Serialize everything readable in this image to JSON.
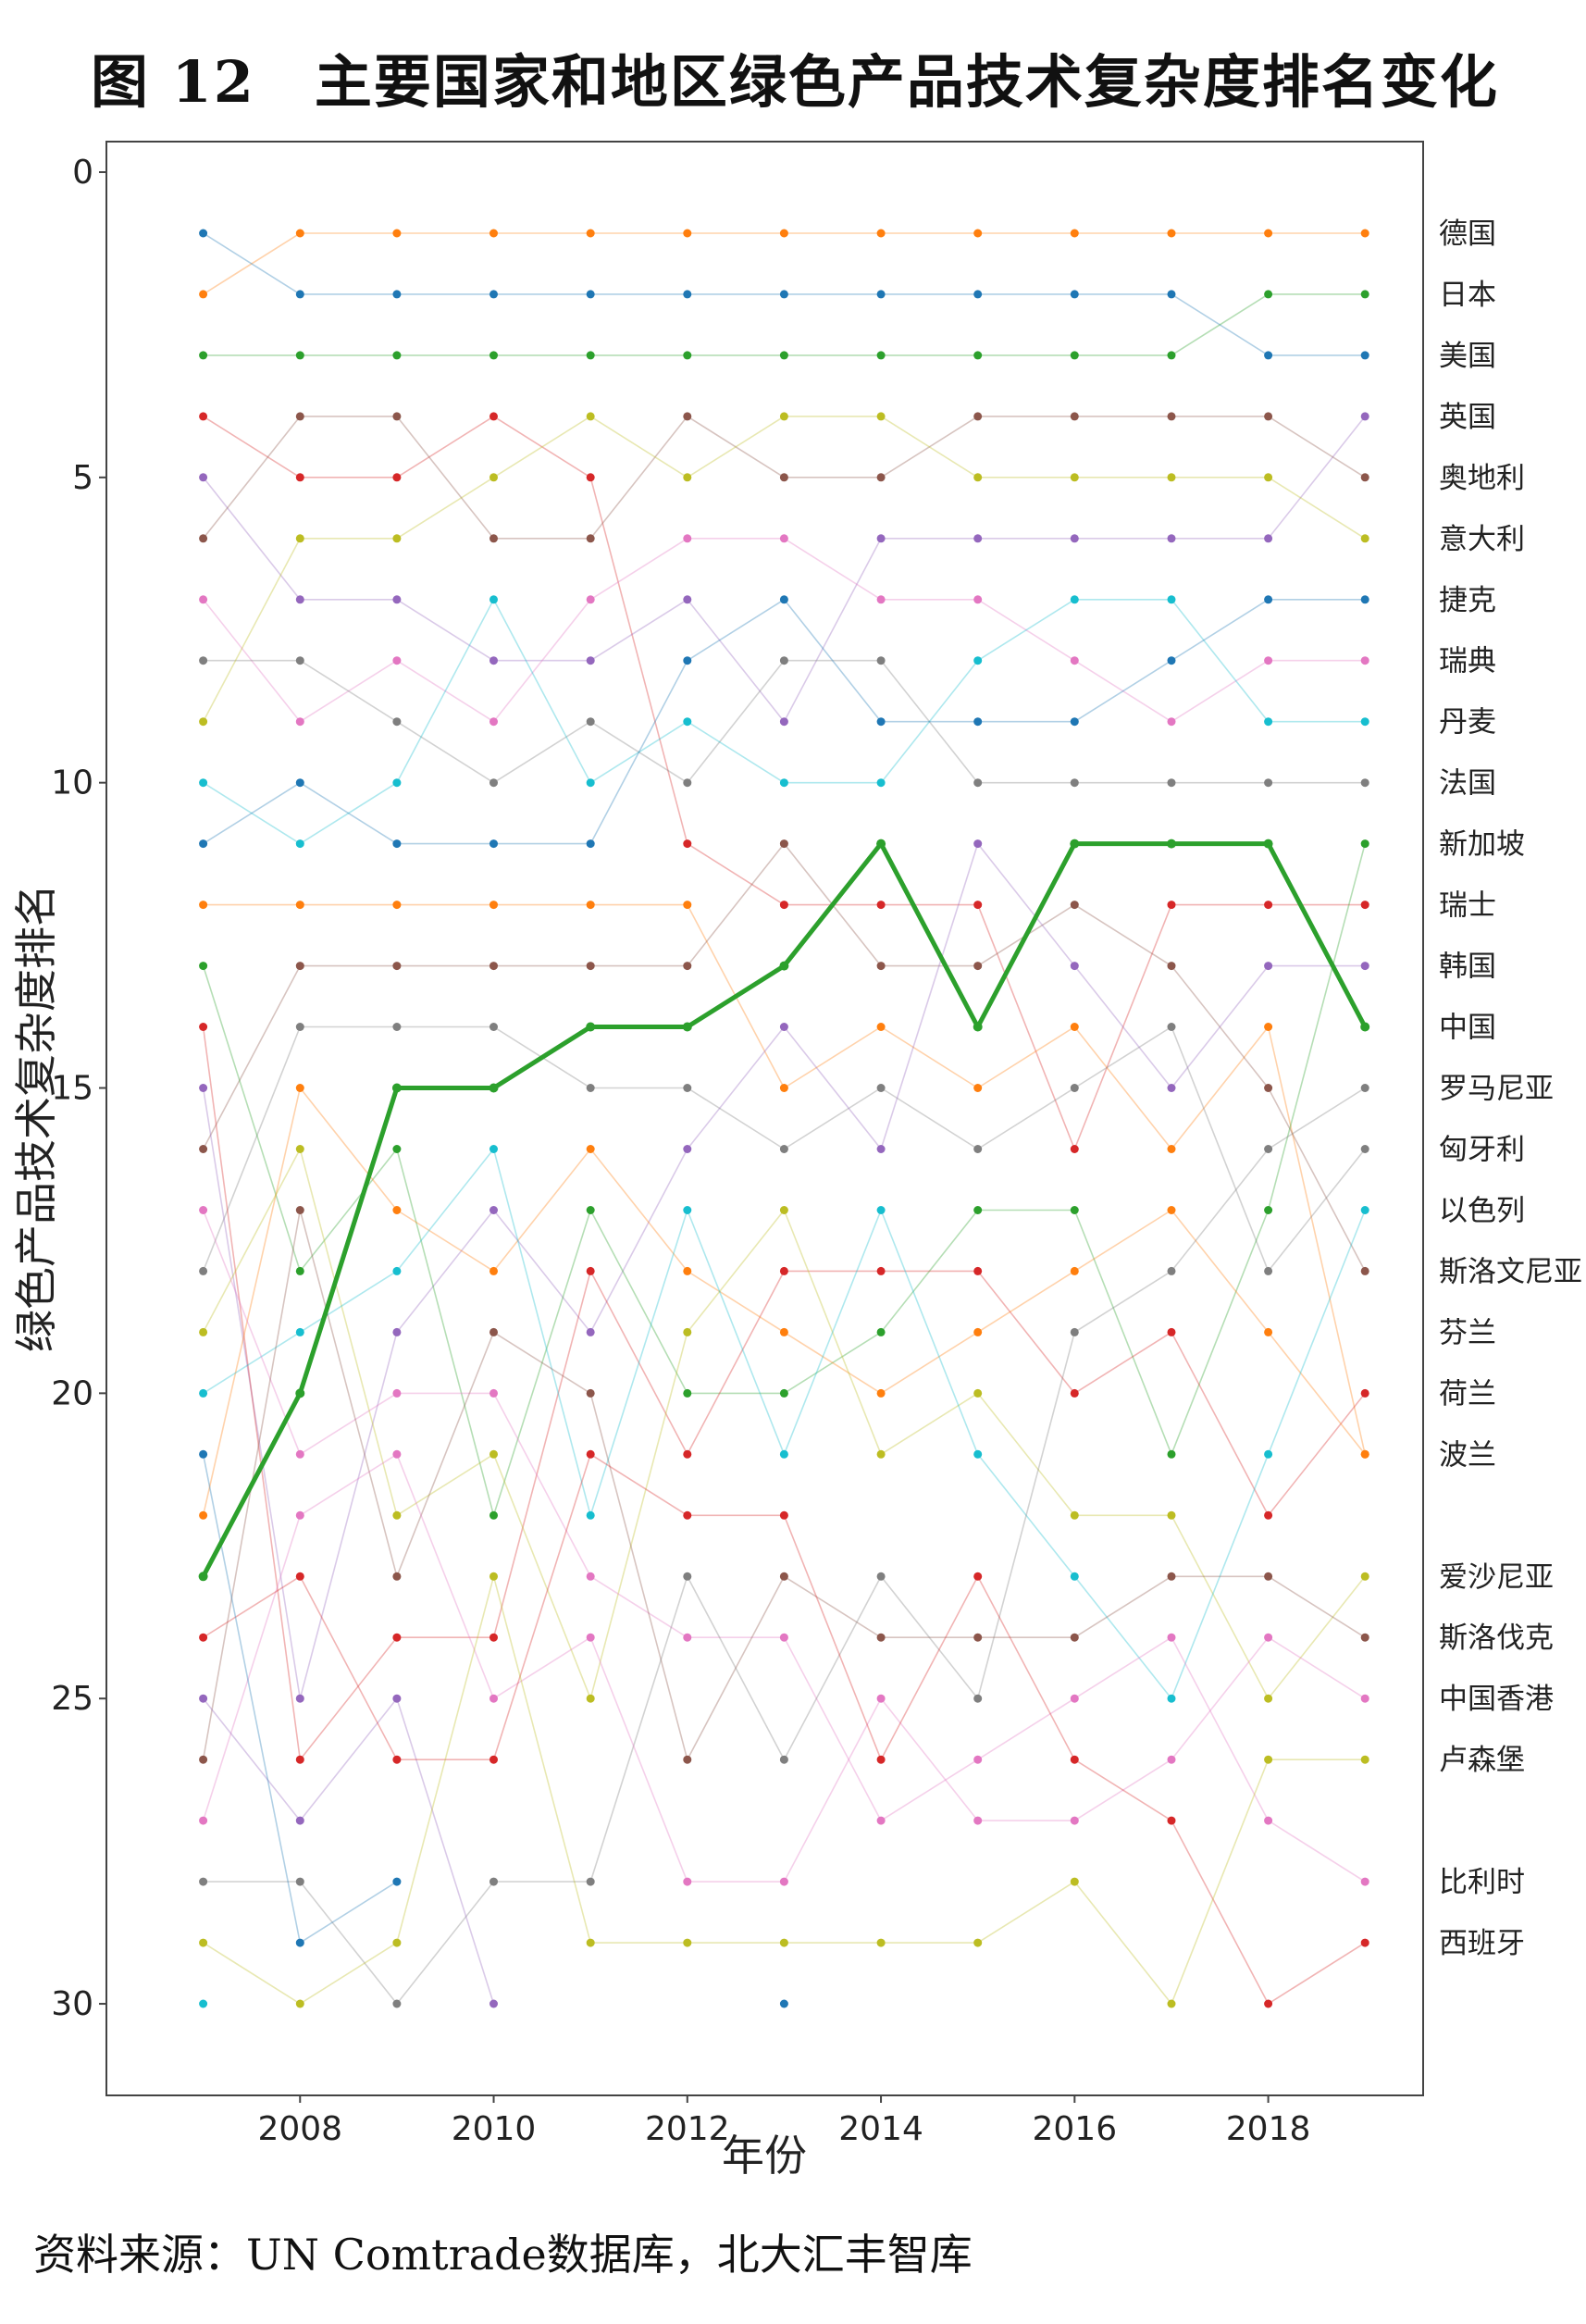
{
  "title": "图 12　主要国家和地区绿色产品技术复杂度排名变化",
  "source": "资料来源：UN Comtrade数据库，北大汇丰智库",
  "chart_data": {
    "type": "line",
    "title": "图 12　主要国家和地区绿色产品技术复杂度排名变化",
    "xlabel": "年份",
    "ylabel": "绿色产品技术复杂度排名",
    "xlim": [
      2006.0,
      2019.6
    ],
    "ylim": [
      31.5,
      -0.5
    ],
    "y_inverted": true,
    "x_ticks": [
      2008,
      2010,
      2012,
      2014,
      2016,
      2018
    ],
    "y_ticks": [
      0,
      5,
      10,
      15,
      20,
      25,
      30
    ],
    "grid": false,
    "years": [
      2007,
      2008,
      2009,
      2010,
      2011,
      2012,
      2013,
      2014,
      2015,
      2016,
      2017,
      2018,
      2019
    ],
    "right_labels": [
      {
        "text": "德国",
        "rank": 1
      },
      {
        "text": "日本",
        "rank": 2
      },
      {
        "text": "美国",
        "rank": 3
      },
      {
        "text": "英国",
        "rank": 4
      },
      {
        "text": "奥地利",
        "rank": 5
      },
      {
        "text": "意大利",
        "rank": 6
      },
      {
        "text": "捷克",
        "rank": 7
      },
      {
        "text": "瑞典",
        "rank": 8
      },
      {
        "text": "丹麦",
        "rank": 9
      },
      {
        "text": "法国",
        "rank": 10
      },
      {
        "text": "新加坡",
        "rank": 11
      },
      {
        "text": "瑞士",
        "rank": 12
      },
      {
        "text": "韩国",
        "rank": 13
      },
      {
        "text": "中国",
        "rank": 14
      },
      {
        "text": "罗马尼亚",
        "rank": 15
      },
      {
        "text": "匈牙利",
        "rank": 16
      },
      {
        "text": "以色列",
        "rank": 17
      },
      {
        "text": "斯洛文尼亚",
        "rank": 18
      },
      {
        "text": "芬兰",
        "rank": 19
      },
      {
        "text": "荷兰",
        "rank": 20
      },
      {
        "text": "波兰",
        "rank": 21
      },
      {
        "text": "爱沙尼亚",
        "rank": 23
      },
      {
        "text": "斯洛伐克",
        "rank": 24
      },
      {
        "text": "中国香港",
        "rank": 25
      },
      {
        "text": "卢森堡",
        "rank": 26
      },
      {
        "text": "比利时",
        "rank": 28
      },
      {
        "text": "西班牙",
        "rank": 29
      }
    ],
    "series": [
      {
        "color": "#ff7f0e",
        "highlight": false,
        "values": [
          2,
          1,
          1,
          1,
          1,
          1,
          1,
          1,
          1,
          1,
          1,
          1,
          1
        ]
      },
      {
        "color": "#1f77b4",
        "highlight": false,
        "values": [
          1,
          2,
          2,
          2,
          2,
          2,
          2,
          2,
          2,
          2,
          2,
          3,
          3
        ]
      },
      {
        "color": "#2ca02c",
        "highlight": false,
        "values": [
          3,
          3,
          3,
          3,
          3,
          3,
          3,
          3,
          3,
          3,
          3,
          2,
          2
        ]
      },
      {
        "color": "#d62728",
        "highlight": false,
        "values": [
          4,
          5,
          5,
          4,
          5,
          11,
          12,
          12,
          12,
          16,
          12,
          12,
          12
        ]
      },
      {
        "color": "#9467bd",
        "highlight": false,
        "values": [
          5,
          7,
          7,
          8,
          8,
          7,
          9,
          6,
          6,
          6,
          6,
          6,
          4
        ]
      },
      {
        "color": "#8c564b",
        "highlight": false,
        "values": [
          6,
          4,
          4,
          6,
          6,
          4,
          5,
          5,
          4,
          4,
          4,
          4,
          5
        ]
      },
      {
        "color": "#e377c2",
        "highlight": false,
        "values": [
          7,
          9,
          8,
          9,
          7,
          6,
          6,
          7,
          7,
          8,
          9,
          8,
          8
        ]
      },
      {
        "color": "#7f7f7f",
        "highlight": false,
        "values": [
          8,
          8,
          9,
          10,
          9,
          10,
          8,
          8,
          10,
          10,
          10,
          10,
          10
        ]
      },
      {
        "color": "#bcbd22",
        "highlight": false,
        "values": [
          9,
          6,
          6,
          5,
          4,
          5,
          4,
          4,
          5,
          5,
          5,
          5,
          6
        ]
      },
      {
        "color": "#17becf",
        "highlight": false,
        "values": [
          10,
          11,
          10,
          7,
          10,
          9,
          10,
          10,
          8,
          7,
          7,
          9,
          9
        ]
      },
      {
        "color": "#1f77b4",
        "highlight": false,
        "values": [
          11,
          10,
          11,
          11,
          11,
          8,
          7,
          9,
          9,
          9,
          8,
          7,
          7
        ]
      },
      {
        "color": "#ff7f0e",
        "highlight": false,
        "values": [
          12,
          12,
          12,
          12,
          12,
          12,
          15,
          14,
          15,
          14,
          16,
          14,
          21
        ]
      },
      {
        "color": "#8c564b",
        "highlight": false,
        "values": [
          16,
          13,
          13,
          13,
          13,
          13,
          11,
          13,
          13,
          12,
          13,
          15,
          18
        ]
      },
      {
        "color": "#7f7f7f",
        "highlight": false,
        "values": [
          18,
          14,
          14,
          14,
          15,
          15,
          16,
          15,
          16,
          15,
          14,
          18,
          16
        ]
      },
      {
        "color": "#9467bd",
        "highlight": false,
        "values": [
          15,
          25,
          19,
          17,
          19,
          16,
          14,
          16,
          11,
          13,
          15,
          13,
          13
        ]
      },
      {
        "color": "#2ca02c",
        "highlight": false,
        "values": [
          13,
          18,
          16,
          22,
          17,
          20,
          20,
          19,
          17,
          17,
          21,
          17,
          11
        ]
      },
      {
        "color": "#d62728",
        "highlight": false,
        "values": [
          14,
          26,
          24,
          24,
          18,
          21,
          18,
          18,
          18,
          20,
          19,
          22,
          20
        ]
      },
      {
        "color": "#ff7f0e",
        "highlight": false,
        "values": [
          22,
          15,
          17,
          18,
          16,
          18,
          19,
          20,
          19,
          18,
          17,
          19,
          21
        ]
      },
      {
        "color": "#bcbd22",
        "highlight": false,
        "values": [
          19,
          16,
          22,
          21,
          25,
          19,
          17,
          21,
          20,
          22,
          22,
          25,
          23
        ]
      },
      {
        "color": "#17becf",
        "highlight": false,
        "values": [
          20,
          19,
          18,
          16,
          22,
          17,
          21,
          17,
          21,
          23,
          25,
          21,
          17
        ]
      },
      {
        "color": "#e377c2",
        "highlight": false,
        "values": [
          17,
          21,
          20,
          20,
          23,
          24,
          24,
          27,
          26,
          25,
          24,
          27,
          28
        ]
      },
      {
        "color": "#8c564b",
        "highlight": false,
        "values": [
          26,
          17,
          23,
          19,
          20,
          26,
          23,
          24,
          24,
          24,
          23,
          23,
          24
        ]
      },
      {
        "color": "#7f7f7f",
        "highlight": false,
        "values": [
          28,
          28,
          30,
          28,
          28,
          23,
          26,
          23,
          25,
          19,
          18,
          16,
          15
        ]
      },
      {
        "color": "#e377c2",
        "highlight": false,
        "values": [
          27,
          22,
          21,
          25,
          24,
          28,
          28,
          25,
          27,
          27,
          26,
          24,
          25
        ]
      },
      {
        "color": "#9467bd",
        "highlight": false,
        "values": [
          25,
          27,
          25,
          30,
          null,
          null,
          null,
          null,
          null,
          null,
          null,
          null,
          null
        ]
      },
      {
        "color": "#d62728",
        "highlight": false,
        "values": [
          24,
          23,
          26,
          26,
          21,
          22,
          22,
          26,
          23,
          26,
          27,
          30,
          29
        ]
      },
      {
        "color": "#bcbd22",
        "highlight": false,
        "values": [
          29,
          30,
          29,
          23,
          29,
          29,
          29,
          29,
          29,
          28,
          30,
          26,
          26
        ]
      },
      {
        "color": "#1f77b4",
        "highlight": false,
        "values": [
          21,
          29,
          28,
          null,
          null,
          null,
          30,
          null,
          null,
          null,
          null,
          null,
          null
        ]
      },
      {
        "color": "#17becf",
        "highlight": false,
        "values": [
          30,
          null,
          null,
          null,
          null,
          null,
          null,
          null,
          null,
          null,
          null,
          null,
          null
        ]
      },
      {
        "color": "#2ca02c",
        "highlight": true,
        "values": [
          23,
          20,
          15,
          15,
          14,
          14,
          13,
          11,
          14,
          11,
          11,
          11,
          14
        ]
      }
    ]
  }
}
